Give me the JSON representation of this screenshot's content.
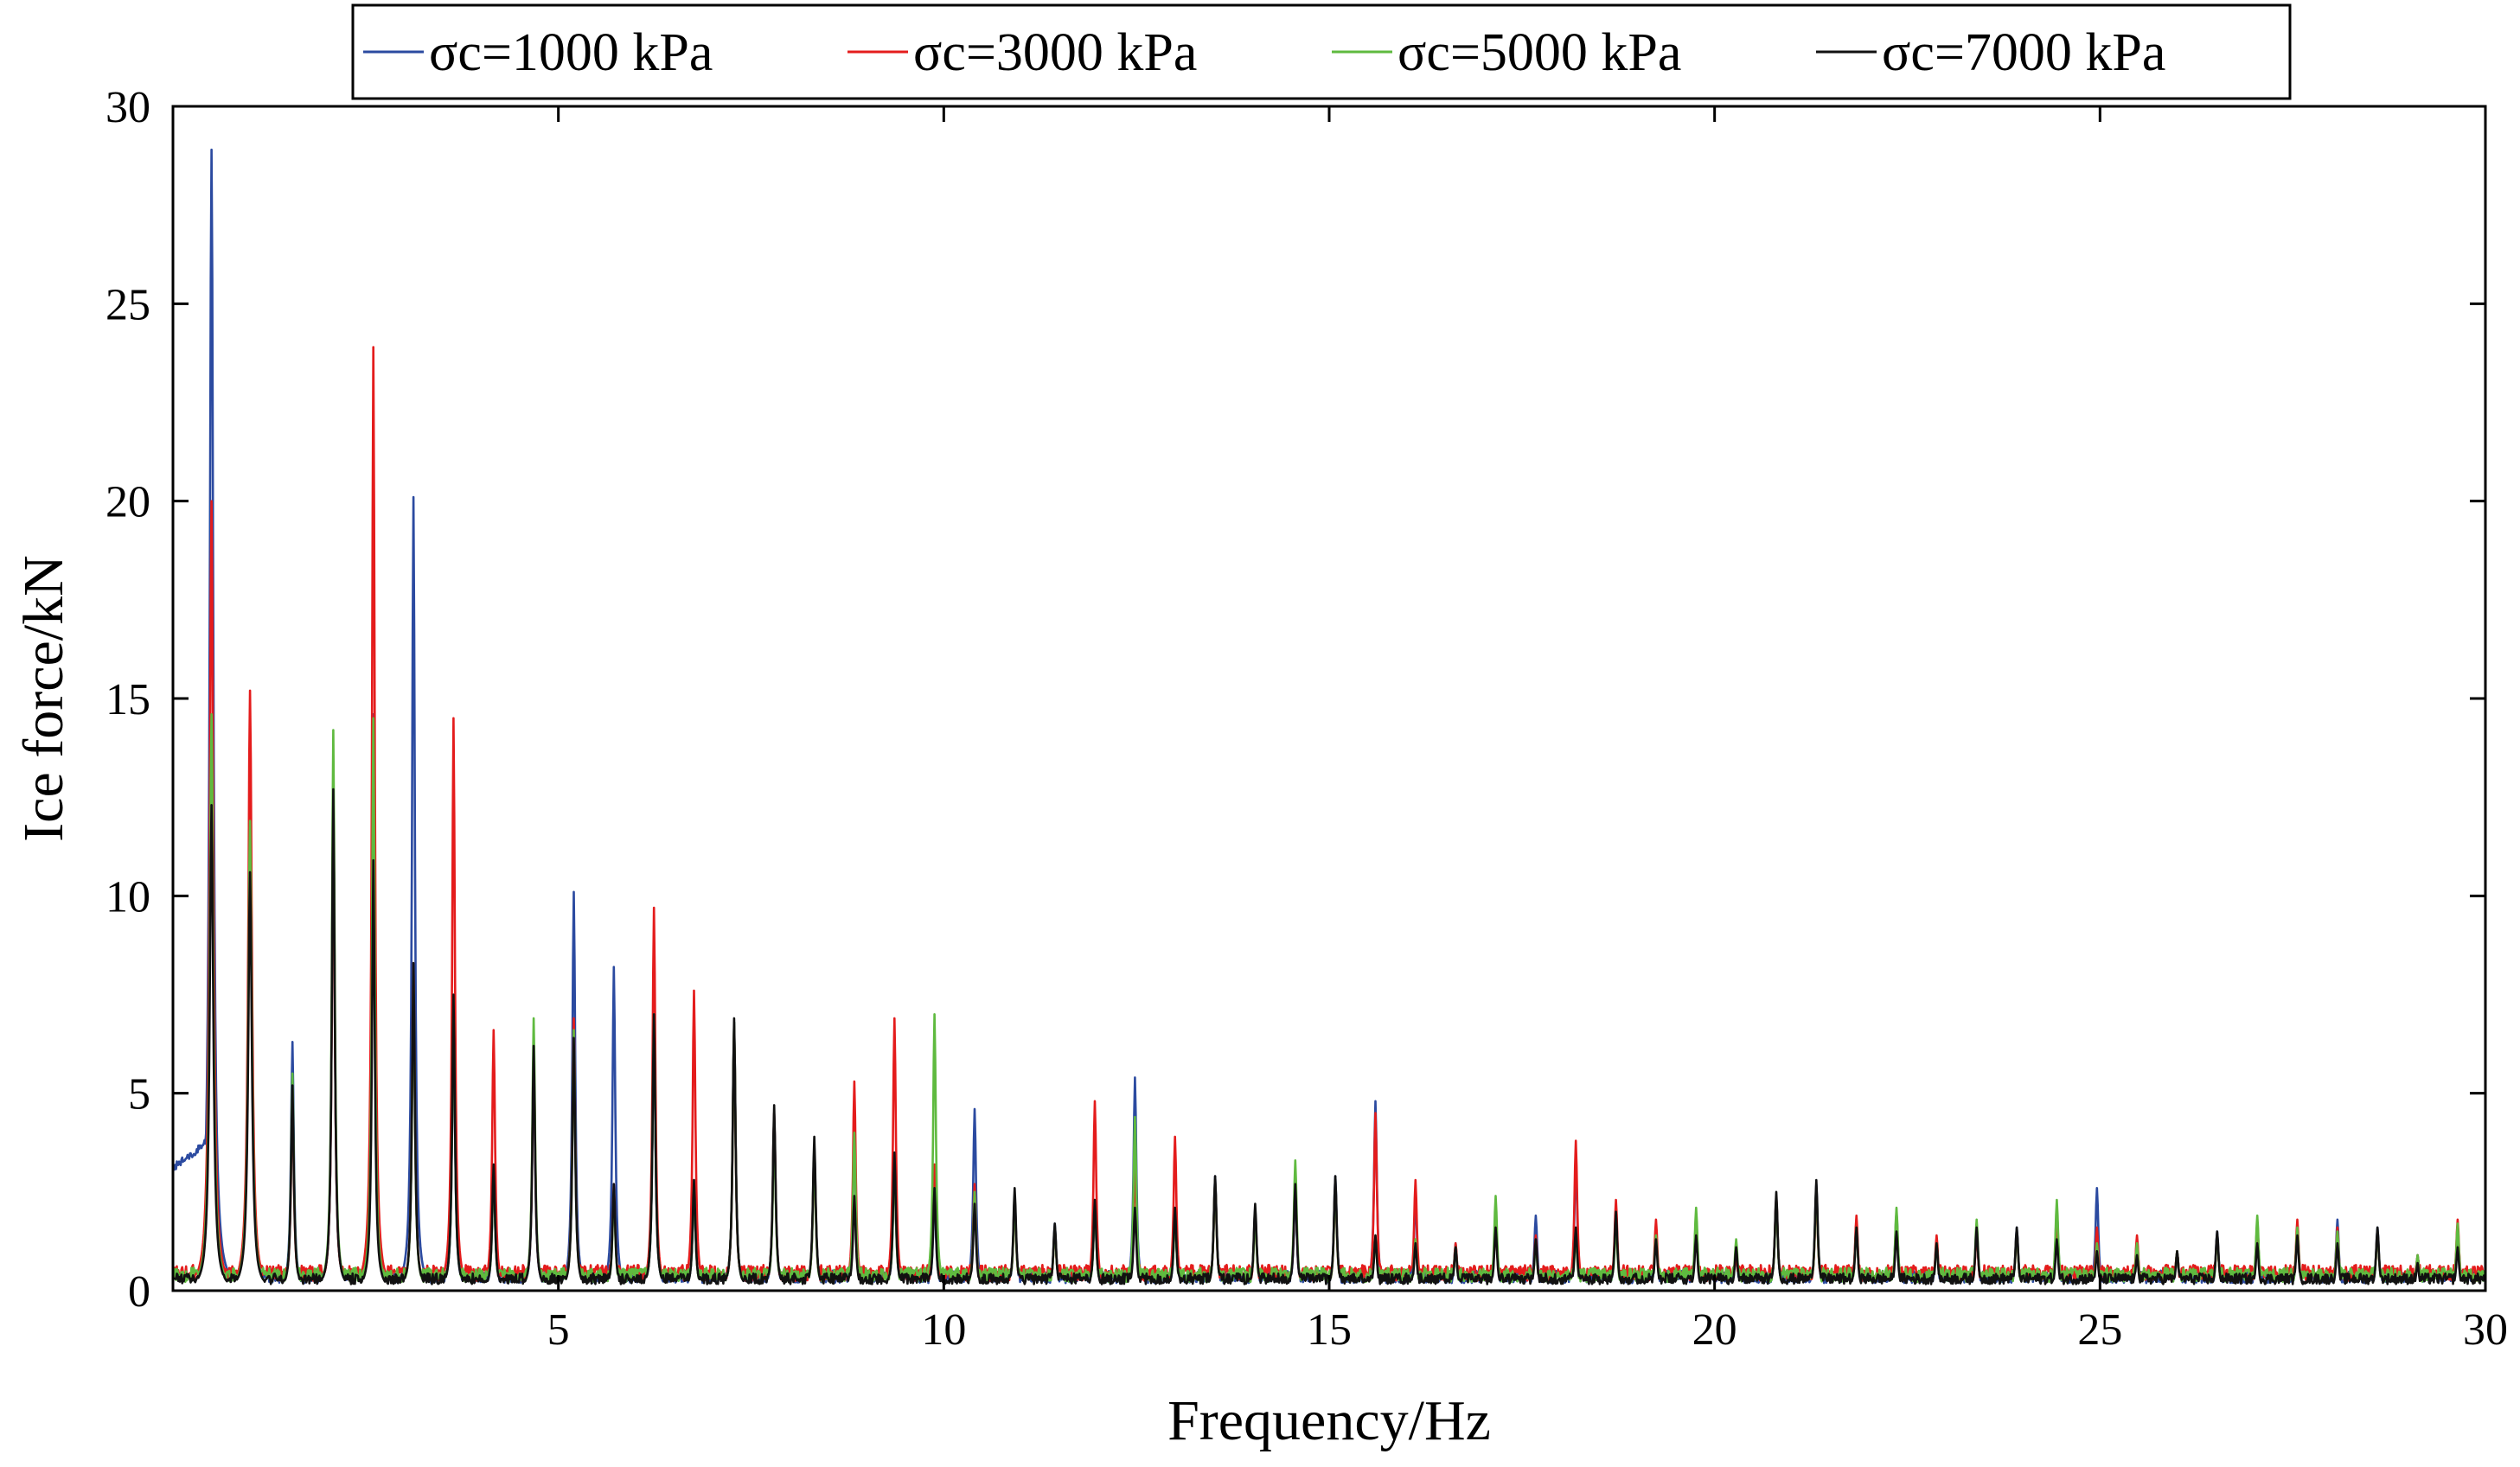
{
  "chart_data": {
    "type": "line",
    "xlabel": "Frequency/Hz",
    "ylabel": "Ice  force/kN",
    "xlim": [
      0,
      30
    ],
    "ylim": [
      0,
      30
    ],
    "x_ticks": [
      5,
      10,
      15,
      20,
      25,
      30
    ],
    "y_ticks": [
      0,
      5,
      10,
      15,
      20,
      25,
      30
    ],
    "grid": false,
    "legend_position": "top",
    "baseline": {
      "sc1000": 0.35,
      "sc3000": 0.45,
      "sc5000": 0.4,
      "sc7000": 0.3
    },
    "series": [
      {
        "id": "sc1000",
        "name": "σc=1000 kPa",
        "color": "#2b4aa0",
        "peaks": [
          [
            0.5,
            28.9
          ],
          [
            1.0,
            12.2
          ],
          [
            1.55,
            6.3
          ],
          [
            2.08,
            12.6
          ],
          [
            2.6,
            14.6
          ],
          [
            3.12,
            20.1
          ],
          [
            3.64,
            7.2
          ],
          [
            4.16,
            3.0
          ],
          [
            4.68,
            6.0
          ],
          [
            5.2,
            10.1
          ],
          [
            5.72,
            8.2
          ],
          [
            6.24,
            6.9
          ],
          [
            6.76,
            2.8
          ],
          [
            7.28,
            6.8
          ],
          [
            7.8,
            4.5
          ],
          [
            8.32,
            3.7
          ],
          [
            8.84,
            4.0
          ],
          [
            9.36,
            3.3
          ],
          [
            9.88,
            2.5
          ],
          [
            10.4,
            4.6
          ],
          [
            10.92,
            2.4
          ],
          [
            11.44,
            1.7
          ],
          [
            11.96,
            2.3
          ],
          [
            12.48,
            5.4
          ],
          [
            13.0,
            2.0
          ],
          [
            13.52,
            2.9
          ],
          [
            14.04,
            2.1
          ],
          [
            14.56,
            2.6
          ],
          [
            15.08,
            2.9
          ],
          [
            15.6,
            4.8
          ],
          [
            16.12,
            2.4
          ],
          [
            16.64,
            1.2
          ],
          [
            17.16,
            2.0
          ],
          [
            17.68,
            1.9
          ],
          [
            18.2,
            3.3
          ],
          [
            18.72,
            2.1
          ],
          [
            19.24,
            1.5
          ],
          [
            19.76,
            1.9
          ],
          [
            20.28,
            1.0
          ],
          [
            20.8,
            2.4
          ],
          [
            21.32,
            2.7
          ],
          [
            21.84,
            1.8
          ],
          [
            22.36,
            2.0
          ],
          [
            22.88,
            1.3
          ],
          [
            23.4,
            1.6
          ],
          [
            23.92,
            1.6
          ],
          [
            24.44,
            2.1
          ],
          [
            24.96,
            2.6
          ],
          [
            25.48,
            1.3
          ],
          [
            26.0,
            1.0
          ],
          [
            26.52,
            1.5
          ],
          [
            27.04,
            1.7
          ],
          [
            27.56,
            1.6
          ],
          [
            28.08,
            1.8
          ],
          [
            28.6,
            1.6
          ],
          [
            29.12,
            0.9
          ],
          [
            29.64,
            1.2
          ]
        ]
      },
      {
        "id": "sc3000",
        "name": "σc=3000 kPa",
        "color": "#e41c1c",
        "peaks": [
          [
            0.5,
            20.0
          ],
          [
            1.0,
            15.2
          ],
          [
            1.55,
            5.0
          ],
          [
            2.08,
            12.4
          ],
          [
            2.6,
            23.9
          ],
          [
            3.12,
            8.3
          ],
          [
            3.64,
            14.5
          ],
          [
            4.16,
            6.6
          ],
          [
            4.68,
            6.3
          ],
          [
            5.2,
            6.9
          ],
          [
            5.72,
            2.7
          ],
          [
            6.24,
            9.7
          ],
          [
            6.76,
            7.6
          ],
          [
            7.28,
            6.7
          ],
          [
            7.8,
            4.5
          ],
          [
            8.32,
            3.6
          ],
          [
            8.84,
            5.3
          ],
          [
            9.36,
            6.9
          ],
          [
            9.88,
            3.2
          ],
          [
            10.4,
            2.7
          ],
          [
            10.92,
            2.3
          ],
          [
            11.44,
            1.6
          ],
          [
            11.96,
            4.8
          ],
          [
            12.48,
            3.2
          ],
          [
            13.0,
            3.9
          ],
          [
            13.52,
            2.8
          ],
          [
            14.04,
            2.0
          ],
          [
            14.56,
            2.9
          ],
          [
            15.08,
            2.7
          ],
          [
            15.6,
            4.5
          ],
          [
            16.12,
            2.8
          ],
          [
            16.64,
            1.2
          ],
          [
            17.16,
            1.8
          ],
          [
            17.68,
            1.4
          ],
          [
            18.2,
            3.8
          ],
          [
            18.72,
            2.3
          ],
          [
            19.24,
            1.8
          ],
          [
            19.76,
            1.8
          ],
          [
            20.28,
            0.9
          ],
          [
            20.8,
            2.4
          ],
          [
            21.32,
            2.5
          ],
          [
            21.84,
            1.9
          ],
          [
            22.36,
            1.9
          ],
          [
            22.88,
            1.4
          ],
          [
            23.4,
            1.5
          ],
          [
            23.92,
            1.5
          ],
          [
            24.44,
            1.9
          ],
          [
            24.96,
            1.6
          ],
          [
            25.48,
            1.4
          ],
          [
            26.0,
            1.0
          ],
          [
            26.52,
            1.4
          ],
          [
            27.04,
            1.7
          ],
          [
            27.56,
            1.8
          ],
          [
            28.08,
            1.6
          ],
          [
            28.6,
            1.5
          ],
          [
            29.12,
            0.9
          ],
          [
            29.64,
            1.8
          ]
        ]
      },
      {
        "id": "sc5000",
        "name": "σc=5000 kPa",
        "color": "#5fba3f",
        "peaks": [
          [
            0.5,
            14.6
          ],
          [
            1.0,
            11.9
          ],
          [
            1.55,
            5.5
          ],
          [
            2.08,
            14.2
          ],
          [
            2.6,
            14.5
          ],
          [
            3.12,
            8.0
          ],
          [
            3.64,
            7.4
          ],
          [
            4.16,
            3.0
          ],
          [
            4.68,
            6.9
          ],
          [
            5.2,
            6.6
          ],
          [
            5.72,
            2.5
          ],
          [
            6.24,
            7.0
          ],
          [
            6.76,
            2.7
          ],
          [
            7.28,
            6.8
          ],
          [
            7.8,
            4.2
          ],
          [
            8.32,
            3.5
          ],
          [
            8.84,
            4.0
          ],
          [
            9.36,
            3.2
          ],
          [
            9.88,
            7.0
          ],
          [
            10.4,
            2.5
          ],
          [
            10.92,
            2.3
          ],
          [
            11.44,
            1.6
          ],
          [
            11.96,
            2.2
          ],
          [
            12.48,
            4.4
          ],
          [
            13.0,
            1.9
          ],
          [
            13.52,
            2.8
          ],
          [
            14.04,
            1.9
          ],
          [
            14.56,
            3.3
          ],
          [
            15.08,
            2.7
          ],
          [
            15.6,
            1.4
          ],
          [
            16.12,
            1.3
          ],
          [
            16.64,
            1.1
          ],
          [
            17.16,
            2.4
          ],
          [
            17.68,
            1.2
          ],
          [
            18.2,
            1.4
          ],
          [
            18.72,
            1.7
          ],
          [
            19.24,
            1.4
          ],
          [
            19.76,
            2.1
          ],
          [
            20.28,
            1.3
          ],
          [
            20.8,
            2.3
          ],
          [
            21.32,
            2.6
          ],
          [
            21.84,
            1.6
          ],
          [
            22.36,
            2.1
          ],
          [
            22.88,
            1.2
          ],
          [
            23.4,
            1.8
          ],
          [
            23.92,
            1.5
          ],
          [
            24.44,
            2.3
          ],
          [
            24.96,
            1.2
          ],
          [
            25.48,
            1.2
          ],
          [
            26.0,
            1.0
          ],
          [
            26.52,
            1.4
          ],
          [
            27.04,
            1.9
          ],
          [
            27.56,
            1.6
          ],
          [
            28.08,
            1.5
          ],
          [
            28.6,
            1.5
          ],
          [
            29.12,
            0.9
          ],
          [
            29.64,
            1.7
          ]
        ]
      },
      {
        "id": "sc7000",
        "name": "σc=7000 kPa",
        "color": "#111111",
        "peaks": [
          [
            0.5,
            12.3
          ],
          [
            1.0,
            10.6
          ],
          [
            1.55,
            5.2
          ],
          [
            2.08,
            12.7
          ],
          [
            2.6,
            10.9
          ],
          [
            3.12,
            8.3
          ],
          [
            3.64,
            7.5
          ],
          [
            4.16,
            3.2
          ],
          [
            4.68,
            6.2
          ],
          [
            5.2,
            6.4
          ],
          [
            5.72,
            2.7
          ],
          [
            6.24,
            7.0
          ],
          [
            6.76,
            2.8
          ],
          [
            7.28,
            6.9
          ],
          [
            7.8,
            4.7
          ],
          [
            8.32,
            3.9
          ],
          [
            8.84,
            2.4
          ],
          [
            9.36,
            3.5
          ],
          [
            9.88,
            2.6
          ],
          [
            10.4,
            2.2
          ],
          [
            10.92,
            2.6
          ],
          [
            11.44,
            1.7
          ],
          [
            11.96,
            2.3
          ],
          [
            12.48,
            2.1
          ],
          [
            13.0,
            2.1
          ],
          [
            13.52,
            2.9
          ],
          [
            14.04,
            2.2
          ],
          [
            14.56,
            2.7
          ],
          [
            15.08,
            2.9
          ],
          [
            15.6,
            1.4
          ],
          [
            16.12,
            1.2
          ],
          [
            16.64,
            1.1
          ],
          [
            17.16,
            1.6
          ],
          [
            17.68,
            1.3
          ],
          [
            18.2,
            1.6
          ],
          [
            18.72,
            2.0
          ],
          [
            19.24,
            1.3
          ],
          [
            19.76,
            1.4
          ],
          [
            20.28,
            1.1
          ],
          [
            20.8,
            2.5
          ],
          [
            21.32,
            2.8
          ],
          [
            21.84,
            1.6
          ],
          [
            22.36,
            1.5
          ],
          [
            22.88,
            1.2
          ],
          [
            23.4,
            1.6
          ],
          [
            23.92,
            1.6
          ],
          [
            24.44,
            1.3
          ],
          [
            24.96,
            1.0
          ],
          [
            25.48,
            0.9
          ],
          [
            26.0,
            1.0
          ],
          [
            26.52,
            1.5
          ],
          [
            27.04,
            1.2
          ],
          [
            27.56,
            1.4
          ],
          [
            28.08,
            1.2
          ],
          [
            28.6,
            1.6
          ],
          [
            29.12,
            0.7
          ],
          [
            29.64,
            1.1
          ]
        ]
      }
    ]
  }
}
